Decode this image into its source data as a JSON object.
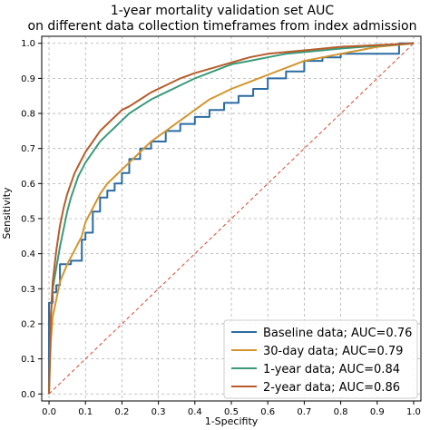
{
  "chart_data": {
    "type": "line",
    "title": "1-year mortality validation set AUC",
    "subtitle": "on different data collection timeframes from index admission",
    "xlabel": "1-Specifity",
    "ylabel": "Sensitivity",
    "xlim": [
      -0.02,
      1.02
    ],
    "ylim": [
      -0.02,
      1.02
    ],
    "x_ticks": [
      0.0,
      0.1,
      0.2,
      0.3,
      0.4,
      0.5,
      0.6,
      0.7,
      0.8,
      0.9,
      1.0
    ],
    "y_ticks": [
      0.0,
      0.1,
      0.2,
      0.3,
      0.4,
      0.5,
      0.6,
      0.7,
      0.8,
      0.9,
      1.0
    ],
    "x_tick_labels": [
      "0.0",
      "0.1",
      "0.2",
      "0.3",
      "0.4",
      "0.5",
      "0.6",
      "0.7",
      "0.8",
      "0.9",
      "1.0"
    ],
    "y_tick_labels": [
      "0.0",
      "0.1",
      "0.2",
      "0.3",
      "0.4",
      "0.5",
      "0.6",
      "0.7",
      "0.8",
      "0.9",
      "1.0"
    ],
    "grid": true,
    "legend_position": "bottom-right",
    "series": [
      {
        "name": "Baseline data; AUC=0.76",
        "color": "#2b6ca3",
        "step": true,
        "x": [
          0.0,
          0.0,
          0.01,
          0.01,
          0.02,
          0.02,
          0.03,
          0.03,
          0.06,
          0.06,
          0.09,
          0.09,
          0.1,
          0.1,
          0.12,
          0.12,
          0.14,
          0.14,
          0.16,
          0.16,
          0.18,
          0.18,
          0.2,
          0.2,
          0.22,
          0.22,
          0.25,
          0.25,
          0.28,
          0.28,
          0.32,
          0.32,
          0.36,
          0.36,
          0.4,
          0.4,
          0.44,
          0.44,
          0.48,
          0.48,
          0.52,
          0.52,
          0.56,
          0.56,
          0.6,
          0.6,
          0.65,
          0.65,
          0.7,
          0.7,
          0.75,
          0.75,
          0.8,
          0.8,
          0.96,
          0.96,
          1.0
        ],
        "y": [
          0.0,
          0.26,
          0.26,
          0.29,
          0.29,
          0.31,
          0.31,
          0.37,
          0.37,
          0.38,
          0.38,
          0.44,
          0.44,
          0.46,
          0.46,
          0.52,
          0.52,
          0.56,
          0.56,
          0.58,
          0.58,
          0.6,
          0.6,
          0.63,
          0.63,
          0.67,
          0.67,
          0.7,
          0.7,
          0.72,
          0.72,
          0.75,
          0.75,
          0.77,
          0.77,
          0.79,
          0.79,
          0.81,
          0.81,
          0.83,
          0.83,
          0.85,
          0.85,
          0.87,
          0.87,
          0.9,
          0.9,
          0.92,
          0.92,
          0.95,
          0.95,
          0.96,
          0.96,
          0.97,
          0.97,
          1.0,
          1.0
        ]
      },
      {
        "name": "30-day data; AUC=0.79",
        "color": "#d4952e",
        "step": false,
        "x": [
          0.0,
          0.005,
          0.01,
          0.02,
          0.03,
          0.05,
          0.07,
          0.09,
          0.1,
          0.12,
          0.14,
          0.16,
          0.18,
          0.2,
          0.22,
          0.25,
          0.28,
          0.32,
          0.36,
          0.4,
          0.44,
          0.5,
          0.55,
          0.6,
          0.65,
          0.7,
          0.75,
          0.8,
          0.85,
          0.9,
          0.95,
          1.0
        ],
        "y": [
          0.0,
          0.15,
          0.22,
          0.27,
          0.32,
          0.37,
          0.41,
          0.45,
          0.49,
          0.53,
          0.57,
          0.6,
          0.62,
          0.64,
          0.66,
          0.69,
          0.72,
          0.75,
          0.78,
          0.81,
          0.84,
          0.87,
          0.89,
          0.91,
          0.93,
          0.95,
          0.96,
          0.97,
          0.98,
          0.99,
          0.995,
          1.0
        ]
      },
      {
        "name": "1-year data; AUC=0.84",
        "color": "#3a9a7a",
        "step": false,
        "x": [
          0.0,
          0.005,
          0.01,
          0.02,
          0.03,
          0.04,
          0.05,
          0.06,
          0.07,
          0.08,
          0.1,
          0.12,
          0.14,
          0.16,
          0.18,
          0.2,
          0.22,
          0.25,
          0.28,
          0.32,
          0.36,
          0.4,
          0.45,
          0.5,
          0.55,
          0.6,
          0.65,
          0.7,
          0.75,
          0.8,
          0.9,
          1.0
        ],
        "y": [
          0.0,
          0.22,
          0.3,
          0.36,
          0.42,
          0.47,
          0.52,
          0.56,
          0.59,
          0.62,
          0.66,
          0.69,
          0.72,
          0.74,
          0.76,
          0.78,
          0.8,
          0.82,
          0.84,
          0.86,
          0.88,
          0.9,
          0.92,
          0.94,
          0.95,
          0.96,
          0.97,
          0.975,
          0.98,
          0.985,
          0.993,
          1.0
        ]
      },
      {
        "name": "2-year data; AUC=0.86",
        "color": "#b85c2a",
        "step": false,
        "x": [
          0.0,
          0.005,
          0.01,
          0.02,
          0.03,
          0.04,
          0.05,
          0.06,
          0.07,
          0.08,
          0.1,
          0.12,
          0.14,
          0.16,
          0.18,
          0.2,
          0.22,
          0.25,
          0.28,
          0.32,
          0.36,
          0.4,
          0.45,
          0.5,
          0.55,
          0.6,
          0.7,
          0.8,
          0.9,
          1.0
        ],
        "y": [
          0.0,
          0.22,
          0.32,
          0.41,
          0.48,
          0.53,
          0.57,
          0.6,
          0.63,
          0.65,
          0.69,
          0.72,
          0.75,
          0.77,
          0.79,
          0.81,
          0.82,
          0.84,
          0.86,
          0.88,
          0.9,
          0.915,
          0.93,
          0.945,
          0.96,
          0.97,
          0.98,
          0.99,
          0.995,
          1.0
        ]
      }
    ],
    "reference_line": {
      "x": [
        0.0,
        1.0
      ],
      "y": [
        0.0,
        1.0
      ],
      "color": "#d9452f",
      "style": "dashed"
    }
  }
}
